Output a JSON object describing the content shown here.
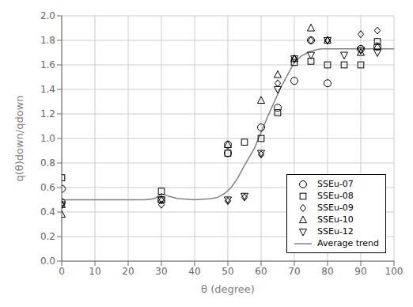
{
  "chart_data": {
    "type": "scatter",
    "xlabel": "θ (degree)",
    "ylabel": "q(θ)down/qdown",
    "xlim": [
      0,
      100
    ],
    "ylim": [
      0.0,
      2.0
    ],
    "xticks": [
      0,
      10,
      20,
      30,
      40,
      50,
      60,
      70,
      80,
      90,
      100
    ],
    "yticks": [
      {
        "value": 0.0,
        "label": "0.0"
      },
      0.2,
      0.4,
      0.6,
      0.8,
      {
        "value": 1.0,
        "label": "1.0"
      },
      1.2,
      1.4,
      1.6,
      1.8,
      {
        "value": 2.0,
        "label": "2.0"
      }
    ],
    "grid": true,
    "legend": "lower right",
    "series": [
      {
        "name": "SSEu-07",
        "type": "scatter",
        "marker": "circle",
        "color": "black",
        "x": [
          0,
          0,
          30,
          50,
          50,
          60,
          65,
          70,
          75,
          80,
          90,
          95
        ],
        "values": [
          0.48,
          0.59,
          0.5,
          0.88,
          0.95,
          1.09,
          1.25,
          1.47,
          1.8,
          1.45,
          1.73,
          1.75
        ]
      },
      {
        "name": "SSEu-08",
        "type": "scatter",
        "marker": "square",
        "color": "black",
        "x": [
          0,
          30,
          50,
          55,
          60,
          65,
          70,
          75,
          80,
          85,
          90,
          95
        ],
        "values": [
          0.68,
          0.57,
          0.88,
          0.97,
          1.0,
          1.21,
          1.62,
          1.63,
          1.6,
          1.6,
          1.6,
          1.79
        ]
      },
      {
        "name": "SSEu-09",
        "type": "scatter",
        "marker": "diamond",
        "color": "black",
        "x": [
          0,
          30,
          50,
          55,
          60,
          65,
          70,
          75,
          80,
          90,
          95
        ],
        "values": [
          0.46,
          0.46,
          0.49,
          0.52,
          0.87,
          1.45,
          1.65,
          1.8,
          1.8,
          1.85,
          1.88
        ]
      },
      {
        "name": "SSEu-10",
        "type": "scatter",
        "marker": "triangle-up",
        "color": "black",
        "x": [
          0,
          0,
          30,
          50,
          60,
          65,
          70,
          75,
          80,
          90,
          95
        ],
        "values": [
          0.38,
          0.46,
          0.5,
          0.95,
          1.31,
          1.52,
          1.65,
          1.9,
          1.8,
          1.7,
          1.75
        ]
      },
      {
        "name": "SSEu-12",
        "type": "scatter",
        "marker": "triangle-down",
        "color": "black",
        "x": [
          0,
          30,
          50,
          55,
          60,
          65,
          70,
          75,
          80,
          85,
          90,
          95
        ],
        "values": [
          0.46,
          0.5,
          0.5,
          0.53,
          0.88,
          1.4,
          1.65,
          1.68,
          1.8,
          1.68,
          1.72,
          1.7
        ]
      },
      {
        "name": "Average trend",
        "type": "line",
        "color": "#808080",
        "x": [
          0,
          5,
          10,
          15,
          20,
          25,
          28,
          30,
          32,
          35,
          40,
          45,
          47,
          49,
          51,
          53,
          55,
          58,
          60,
          62,
          64,
          66,
          68,
          70,
          72,
          74,
          76,
          78,
          80,
          85,
          90,
          95,
          100
        ],
        "values": [
          0.5,
          0.5,
          0.5,
          0.5,
          0.5,
          0.5,
          0.51,
          0.55,
          0.53,
          0.51,
          0.5,
          0.51,
          0.52,
          0.55,
          0.6,
          0.68,
          0.78,
          0.92,
          1.05,
          1.18,
          1.3,
          1.42,
          1.52,
          1.62,
          1.67,
          1.7,
          1.72,
          1.73,
          1.73,
          1.73,
          1.73,
          1.73,
          1.73
        ]
      }
    ]
  }
}
